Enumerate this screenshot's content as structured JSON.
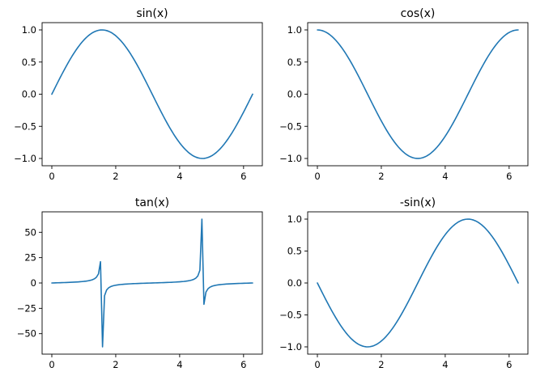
{
  "chart_data": [
    {
      "type": "line",
      "title": "sin(x)",
      "function": "sin",
      "x_samples": 100,
      "xlim": [
        0,
        6.2832
      ],
      "ylim": [
        -1,
        1
      ],
      "xticks": [
        0,
        2,
        4,
        6
      ],
      "xtick_labels": [
        "0",
        "2",
        "4",
        "6"
      ],
      "yticks": [
        1.0,
        0.5,
        0.0,
        -0.5,
        -1.0
      ],
      "ytick_labels": [
        "1.0",
        "0.5",
        "0.0",
        "−0.5",
        "−1.0"
      ],
      "color": "#1f77b4",
      "series": [
        {
          "x": [
            0,
            0.5,
            1.0,
            1.5708,
            2.0,
            2.5,
            3.1416,
            3.5,
            4.0,
            4.7124,
            5.0,
            5.5,
            6.2832
          ],
          "values": [
            0,
            0.48,
            0.84,
            1.0,
            0.91,
            0.6,
            0,
            -0.35,
            -0.76,
            -1.0,
            -0.96,
            -0.71,
            0
          ]
        }
      ],
      "grid": false
    },
    {
      "type": "line",
      "title": "cos(x)",
      "function": "cos",
      "x_samples": 100,
      "xlim": [
        0,
        6.2832
      ],
      "ylim": [
        -1,
        1
      ],
      "xticks": [
        0,
        2,
        4,
        6
      ],
      "xtick_labels": [
        "0",
        "2",
        "4",
        "6"
      ],
      "yticks": [
        1.0,
        0.5,
        0.0,
        -0.5,
        -1.0
      ],
      "ytick_labels": [
        "1.0",
        "0.5",
        "0.0",
        "−0.5",
        "−1.0"
      ],
      "color": "#1f77b4",
      "series": [
        {
          "x": [
            0,
            0.5,
            1.0,
            1.5708,
            2.0,
            2.5,
            3.1416,
            3.5,
            4.0,
            4.7124,
            5.0,
            5.5,
            6.2832
          ],
          "values": [
            1.0,
            0.88,
            0.54,
            0,
            -0.42,
            -0.8,
            -1.0,
            -0.94,
            -0.65,
            0,
            0.28,
            0.71,
            1.0
          ]
        }
      ],
      "grid": false
    },
    {
      "type": "line",
      "title": "tan(x)",
      "function": "tan",
      "x_samples": 100,
      "xlim": [
        0,
        6.2832
      ],
      "ylim": [
        -63,
        63
      ],
      "xticks": [
        0,
        2,
        4,
        6
      ],
      "xtick_labels": [
        "0",
        "2",
        "4",
        "6"
      ],
      "yticks": [
        50,
        25,
        0,
        -25,
        -50
      ],
      "ytick_labels": [
        "50",
        "25",
        "0",
        "−25",
        "−50"
      ],
      "color": "#1f77b4",
      "series": [
        {
          "x": [
            0,
            1.0,
            1.5,
            1.55,
            1.59,
            1.65,
            2.0,
            3.1416,
            4.0,
            4.6,
            4.7,
            4.74,
            5.0,
            6.2832
          ],
          "values": [
            0,
            1.56,
            14.1,
            21.0,
            -63.0,
            -12.6,
            -2.2,
            0,
            1.16,
            8.9,
            63.0,
            -21.0,
            -3.4,
            0
          ]
        }
      ],
      "grid": false
    },
    {
      "type": "line",
      "title": "-sin(x)",
      "function": "negsin",
      "x_samples": 100,
      "xlim": [
        0,
        6.2832
      ],
      "ylim": [
        -1,
        1
      ],
      "xticks": [
        0,
        2,
        4,
        6
      ],
      "xtick_labels": [
        "0",
        "2",
        "4",
        "6"
      ],
      "yticks": [
        1.0,
        0.5,
        0.0,
        -0.5,
        -1.0
      ],
      "ytick_labels": [
        "1.0",
        "0.5",
        "0.0",
        "−0.5",
        "−1.0"
      ],
      "color": "#1f77b4",
      "series": [
        {
          "x": [
            0,
            0.5,
            1.0,
            1.5708,
            2.0,
            2.5,
            3.1416,
            3.5,
            4.0,
            4.7124,
            5.0,
            5.5,
            6.2832
          ],
          "values": [
            0,
            -0.48,
            -0.84,
            -1.0,
            -0.91,
            -0.6,
            0,
            0.35,
            0.76,
            1.0,
            0.96,
            0.71,
            0
          ]
        }
      ],
      "grid": false
    }
  ]
}
